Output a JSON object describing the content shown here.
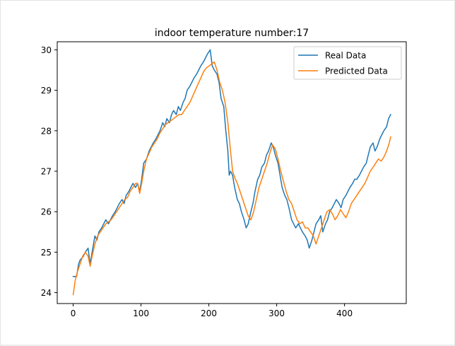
{
  "chart_data": {
    "type": "line",
    "title": "indoor temperature number:17",
    "xlabel": "",
    "ylabel": "",
    "xlim": [
      -23.5,
      491
    ],
    "ylim": [
      23.73,
      30.2
    ],
    "x_ticks": [
      0,
      100,
      200,
      300,
      400
    ],
    "y_ticks": [
      24,
      25,
      26,
      27,
      28,
      29,
      30
    ],
    "grid": false,
    "legend_position": "upper right",
    "series": [
      {
        "name": "Real Data",
        "color": "#1f77b4",
        "x": [
          0,
          5,
          8,
          10,
          15,
          18,
          22,
          25,
          28,
          32,
          35,
          38,
          42,
          45,
          48,
          52,
          55,
          58,
          62,
          65,
          68,
          72,
          75,
          78,
          82,
          85,
          88,
          92,
          95,
          98,
          101,
          104,
          108,
          112,
          115,
          118,
          122,
          125,
          128,
          132,
          135,
          138,
          142,
          145,
          148,
          152,
          155,
          158,
          162,
          165,
          168,
          172,
          175,
          178,
          182,
          185,
          188,
          192,
          195,
          198,
          202,
          205,
          208,
          212,
          215,
          218,
          222,
          225,
          228,
          230,
          232,
          235,
          238,
          242,
          245,
          248,
          252,
          255,
          258,
          262,
          265,
          268,
          272,
          275,
          278,
          282,
          285,
          288,
          292,
          295,
          298,
          302,
          305,
          308,
          312,
          315,
          318,
          322,
          325,
          328,
          332,
          335,
          338,
          342,
          345,
          348,
          352,
          355,
          358,
          362,
          365,
          368,
          372,
          375,
          378,
          382,
          385,
          388,
          392,
          395,
          398,
          402,
          405,
          408,
          412,
          415,
          418,
          422,
          425,
          428,
          432,
          435,
          438,
          442,
          445,
          448,
          452,
          455,
          458,
          462,
          465,
          468
        ],
        "y": [
          24.4,
          24.4,
          24.7,
          24.8,
          24.9,
          25.0,
          25.1,
          24.7,
          25.0,
          25.4,
          25.3,
          25.5,
          25.6,
          25.7,
          25.8,
          25.7,
          25.8,
          25.9,
          26.0,
          26.1,
          26.2,
          26.3,
          26.2,
          26.4,
          26.5,
          26.6,
          26.7,
          26.6,
          26.7,
          26.5,
          26.8,
          27.2,
          27.3,
          27.5,
          27.6,
          27.7,
          27.8,
          27.9,
          28.0,
          28.2,
          28.1,
          28.3,
          28.2,
          28.4,
          28.5,
          28.4,
          28.6,
          28.5,
          28.7,
          28.8,
          29.0,
          29.1,
          29.2,
          29.3,
          29.4,
          29.5,
          29.6,
          29.7,
          29.8,
          29.9,
          30.0,
          29.6,
          29.5,
          29.4,
          29.2,
          28.8,
          28.6,
          28.0,
          27.5,
          26.9,
          27.0,
          26.9,
          26.6,
          26.3,
          26.2,
          26.0,
          25.8,
          25.6,
          25.7,
          26.0,
          26.2,
          26.5,
          26.8,
          26.9,
          27.1,
          27.2,
          27.4,
          27.5,
          27.7,
          27.6,
          27.4,
          27.2,
          26.9,
          26.6,
          26.4,
          26.3,
          26.1,
          25.8,
          25.7,
          25.6,
          25.7,
          25.6,
          25.5,
          25.4,
          25.3,
          25.1,
          25.3,
          25.5,
          25.7,
          25.8,
          25.9,
          25.5,
          25.7,
          25.8,
          26.0,
          26.1,
          26.2,
          26.3,
          26.2,
          26.1,
          26.3,
          26.4,
          26.5,
          26.6,
          26.7,
          26.8,
          26.8,
          26.9,
          27.0,
          27.1,
          27.2,
          27.4,
          27.6,
          27.7,
          27.5,
          27.6,
          27.8,
          27.9,
          28.0,
          28.1,
          28.3,
          28.4
        ]
      },
      {
        "name": "Predicted Data",
        "color": "#ff7f0e",
        "x": [
          0,
          3,
          6,
          10,
          14,
          18,
          22,
          25,
          28,
          32,
          36,
          40,
          44,
          48,
          52,
          56,
          60,
          64,
          68,
          72,
          76,
          80,
          84,
          88,
          92,
          95,
          98,
          101,
          104,
          108,
          112,
          116,
          120,
          124,
          128,
          132,
          136,
          140,
          144,
          148,
          152,
          156,
          160,
          164,
          168,
          172,
          176,
          180,
          184,
          188,
          192,
          196,
          200,
          204,
          208,
          212,
          216,
          220,
          224,
          228,
          232,
          235,
          238,
          242,
          246,
          250,
          254,
          258,
          262,
          266,
          270,
          274,
          278,
          282,
          286,
          290,
          294,
          298,
          302,
          306,
          310,
          314,
          318,
          322,
          326,
          330,
          334,
          338,
          342,
          346,
          350,
          354,
          358,
          362,
          366,
          370,
          374,
          378,
          382,
          386,
          390,
          394,
          398,
          402,
          406,
          410,
          414,
          418,
          422,
          426,
          430,
          434,
          438,
          442,
          446,
          450,
          454,
          458,
          462,
          466,
          468
        ],
        "y": [
          23.95,
          24.3,
          24.5,
          24.7,
          24.9,
          25.0,
          24.9,
          24.65,
          24.9,
          25.2,
          25.4,
          25.5,
          25.6,
          25.7,
          25.75,
          25.8,
          25.9,
          26.0,
          26.1,
          26.2,
          26.3,
          26.35,
          26.5,
          26.6,
          26.7,
          26.7,
          26.45,
          26.7,
          27.0,
          27.3,
          27.45,
          27.6,
          27.7,
          27.8,
          27.95,
          28.05,
          28.15,
          28.2,
          28.25,
          28.3,
          28.35,
          28.4,
          28.4,
          28.5,
          28.6,
          28.7,
          28.85,
          29.0,
          29.15,
          29.3,
          29.45,
          29.55,
          29.6,
          29.65,
          29.7,
          29.5,
          29.2,
          29.0,
          28.7,
          28.2,
          27.5,
          27.0,
          26.85,
          26.7,
          26.5,
          26.3,
          26.1,
          25.9,
          25.8,
          26.0,
          26.3,
          26.6,
          26.8,
          27.0,
          27.2,
          27.45,
          27.65,
          27.55,
          27.3,
          27.0,
          26.75,
          26.5,
          26.3,
          26.2,
          26.0,
          25.8,
          25.7,
          25.75,
          25.6,
          25.6,
          25.5,
          25.4,
          25.2,
          25.4,
          25.6,
          25.8,
          26.0,
          26.05,
          25.95,
          25.8,
          25.9,
          26.05,
          25.95,
          25.85,
          26.0,
          26.2,
          26.3,
          26.4,
          26.5,
          26.6,
          26.7,
          26.85,
          27.0,
          27.1,
          27.2,
          27.3,
          27.25,
          27.35,
          27.5,
          27.7,
          27.85
        ]
      }
    ]
  }
}
